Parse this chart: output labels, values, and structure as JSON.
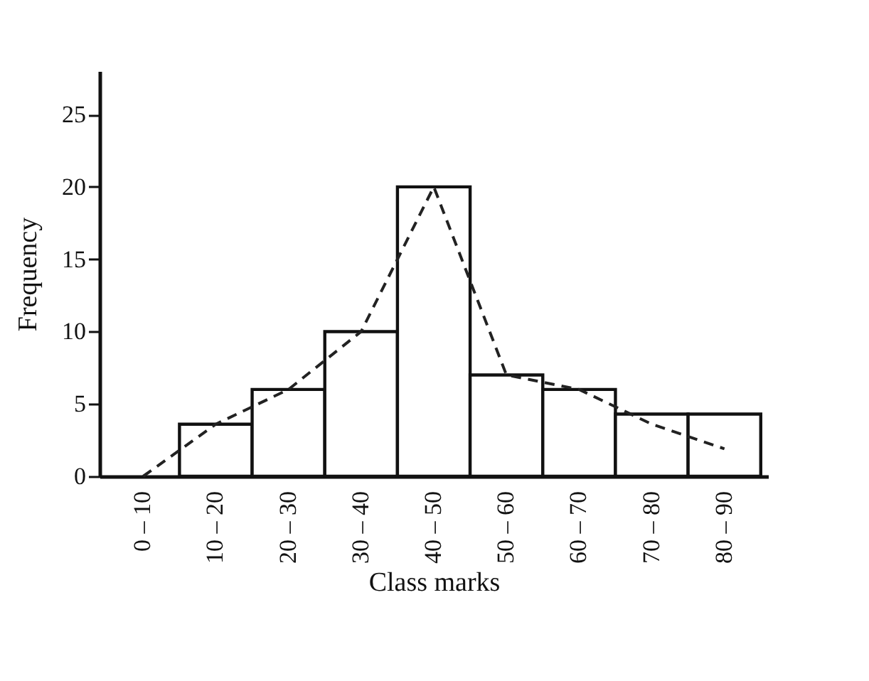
{
  "chart_data": {
    "type": "bar",
    "xlabel": "Class marks",
    "ylabel": "Frequency",
    "categories": [
      "0 – 10",
      "10 – 20",
      "20 – 30",
      "30 – 40",
      "40 – 50",
      "50 – 60",
      "60 – 70",
      "70 – 80",
      "80 – 90"
    ],
    "series": [
      {
        "color": "#ffffff",
        "values": [
          null,
          3.6,
          6,
          10,
          20,
          7,
          6,
          4.3,
          4.3
        ]
      },
      {
        "type": "line",
        "color": "#222222",
        "line_style": "dashed",
        "values": [
          0,
          3.6,
          6,
          10,
          20,
          7,
          6,
          3.6,
          1.9
        ]
      }
    ],
    "ylim": [
      0,
      28
    ],
    "yticks": [
      0,
      5,
      10,
      15,
      20,
      25
    ],
    "grid": false
  }
}
